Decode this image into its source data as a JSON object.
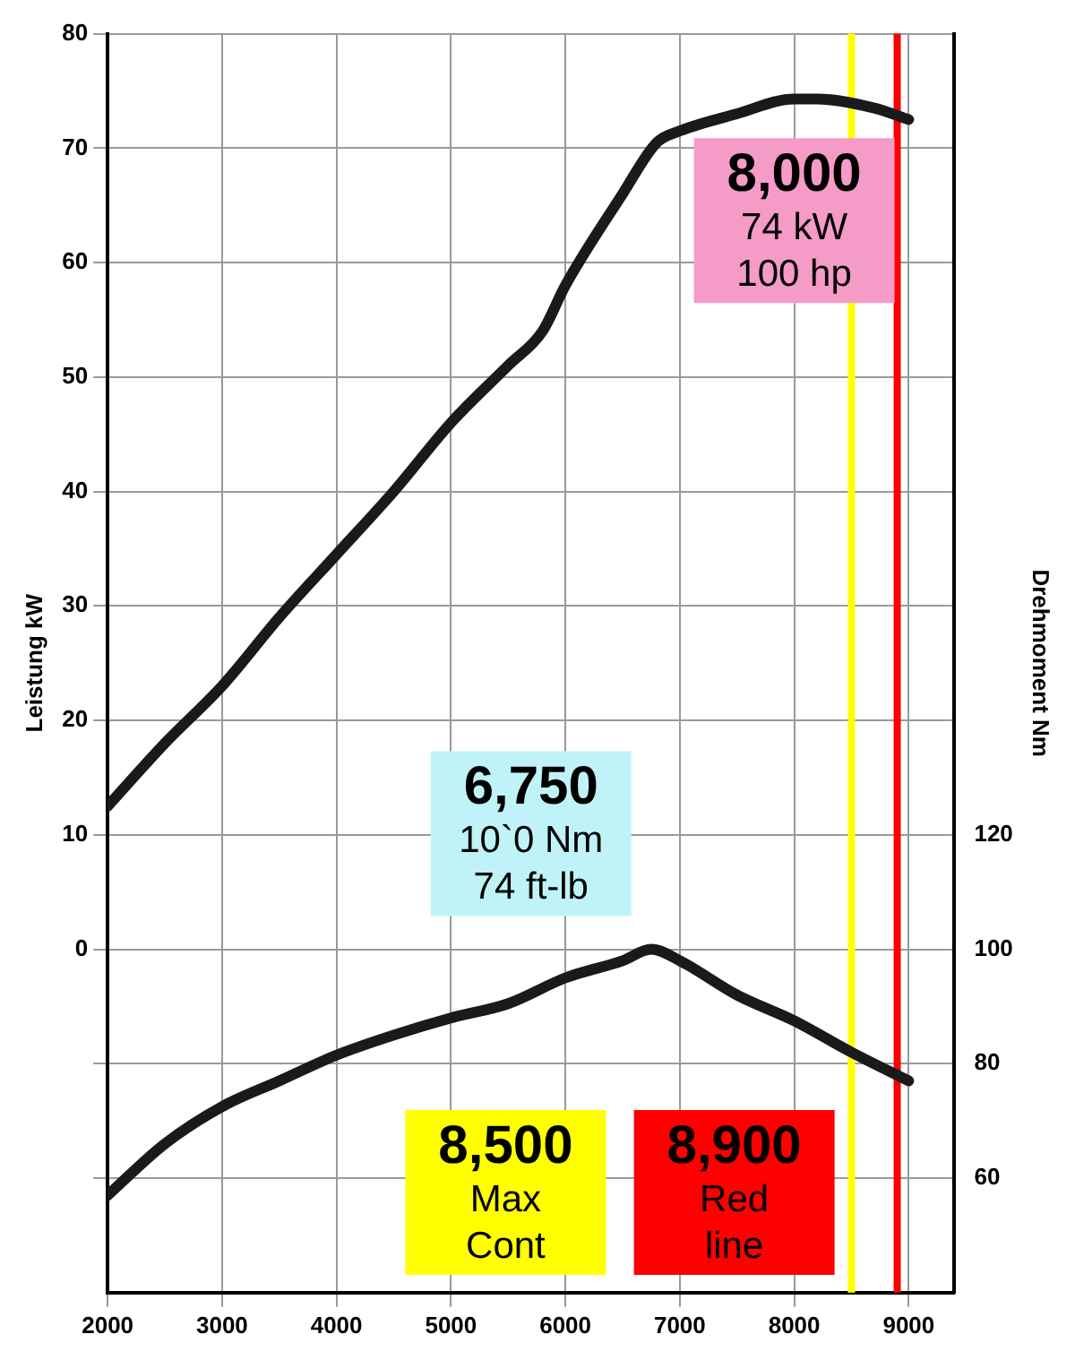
{
  "chart_data": {
    "type": "line",
    "ylabel": "Leistung kW",
    "y2label": "Drehmoment Nm",
    "x": [
      2000,
      2500,
      3000,
      3500,
      4000,
      4500,
      5000,
      5500,
      5800,
      6000,
      6500,
      6800,
      7000,
      7500,
      8000,
      8200,
      8700,
      9000
    ],
    "series": [
      {
        "color": "#1a1a1a",
        "values": [
          12.5,
          18,
          23,
          29,
          34.5,
          40,
          46,
          51,
          54,
          58,
          66,
          70.5,
          71.5,
          73,
          74.3,
          74.3,
          73.5,
          72.5
        ]
      },
      {
        "color": "#1a1a1a",
        "axis": "y2",
        "x": [
          2000,
          2500,
          3000,
          3500,
          4000,
          4500,
          5000,
          5500,
          6000,
          6500,
          6750,
          7000,
          7500,
          8000,
          8500,
          9000
        ],
        "values": [
          57,
          66,
          72.5,
          77,
          81.5,
          85,
          88,
          90.5,
          95,
          98,
          100,
          98,
          92,
          87.5,
          82,
          77
        ]
      }
    ],
    "xlim": [
      2000,
      9400
    ],
    "xticks": [
      2000,
      3000,
      4000,
      5000,
      6000,
      7000,
      8000,
      9000
    ],
    "ylim": [
      -30,
      80
    ],
    "yticks": [
      {
        "value": -20,
        "label": null
      },
      {
        "value": -10,
        "label": null
      },
      0,
      10,
      20,
      30,
      40,
      50,
      60,
      70,
      80
    ],
    "y2lim": [
      40,
      260
    ],
    "y2ticks": [
      60,
      80,
      100,
      120
    ],
    "grid": true,
    "marker": "none",
    "line_style": "solid",
    "ref_lines": [
      {
        "axis": "x",
        "value": 8500,
        "color": "#ffff00"
      },
      {
        "axis": "x",
        "value": 8900,
        "color": "#ff0000"
      }
    ],
    "annotations": [
      {
        "text": "8,000\n74 kW\n100 hp",
        "x": 8000,
        "y": 74
      },
      "6,750\n10`0 Nm\n74 ft-lb",
      "8,500\nMax\nCont",
      "8,900\nRed\nline"
    ]
  }
}
